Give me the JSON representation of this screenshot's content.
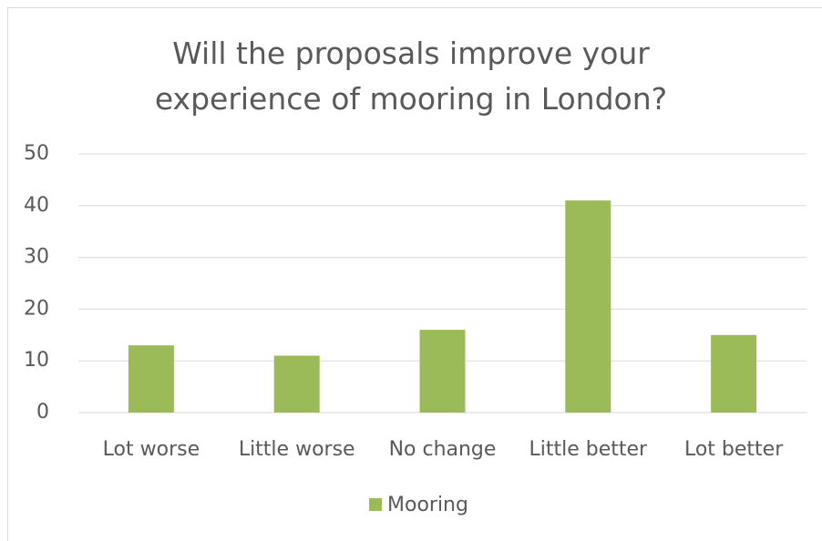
{
  "chart_data": {
    "type": "bar",
    "title": "Will the proposals improve your experience of mooring in London?",
    "categories": [
      "Lot worse",
      "Little worse",
      "No change",
      "Little better",
      "Lot better"
    ],
    "series": [
      {
        "name": "Mooring",
        "color": "#9bbb59",
        "values": [
          13,
          11,
          16,
          41,
          15
        ]
      }
    ],
    "ylim": [
      0,
      50
    ],
    "yticks": [
      0,
      10,
      20,
      30,
      40,
      50
    ],
    "grid": true,
    "legend": "bottom"
  }
}
